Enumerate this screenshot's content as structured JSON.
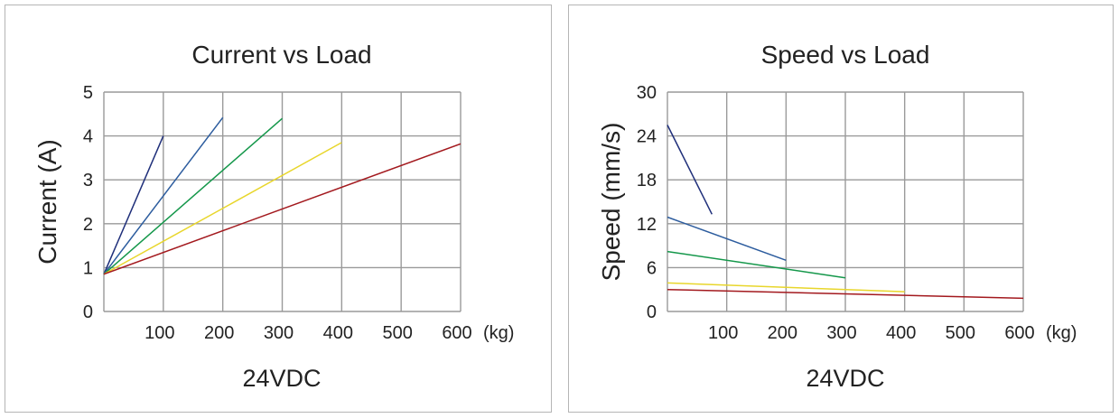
{
  "chart_data": [
    {
      "type": "line",
      "title": "Current vs Load",
      "subtitle": "24VDC",
      "xlabel": "",
      "x_unit": "(kg)",
      "ylabel": "Current (A)",
      "xlim": [
        0,
        600
      ],
      "ylim": [
        0,
        5
      ],
      "x_ticks": [
        100,
        200,
        300,
        400,
        500,
        600
      ],
      "y_ticks": [
        0,
        1,
        2,
        3,
        4,
        5
      ],
      "grid": true,
      "series": [
        {
          "color": "#1f2f7a",
          "points": [
            [
              0,
              0.85
            ],
            [
              100,
              4.0
            ]
          ]
        },
        {
          "color": "#2c5c9e",
          "points": [
            [
              0,
              0.85
            ],
            [
              200,
              4.42
            ]
          ]
        },
        {
          "color": "#14974a",
          "points": [
            [
              0,
              0.85
            ],
            [
              300,
              4.4
            ]
          ]
        },
        {
          "color": "#e8d62b",
          "points": [
            [
              0,
              0.85
            ],
            [
              400,
              3.85
            ]
          ]
        },
        {
          "color": "#a3191e",
          "points": [
            [
              0,
              0.85
            ],
            [
              600,
              3.82
            ]
          ]
        }
      ]
    },
    {
      "type": "line",
      "title": "Speed vs Load",
      "subtitle": "24VDC",
      "xlabel": "",
      "x_unit": "(kg)",
      "ylabel": "Speed (mm/s)",
      "xlim": [
        0,
        600
      ],
      "ylim": [
        0,
        30
      ],
      "x_ticks": [
        100,
        200,
        300,
        400,
        500,
        600
      ],
      "y_ticks": [
        0,
        6,
        12,
        18,
        24,
        30
      ],
      "grid": true,
      "series": [
        {
          "color": "#1f2f7a",
          "points": [
            [
              0,
              25.5
            ],
            [
              75,
              13.3
            ]
          ]
        },
        {
          "color": "#2c5c9e",
          "points": [
            [
              0,
              12.9
            ],
            [
              200,
              7.0
            ]
          ]
        },
        {
          "color": "#14974a",
          "points": [
            [
              0,
              8.2
            ],
            [
              300,
              4.6
            ]
          ]
        },
        {
          "color": "#e8d62b",
          "points": [
            [
              0,
              3.9
            ],
            [
              400,
              2.7
            ]
          ]
        },
        {
          "color": "#a3191e",
          "points": [
            [
              0,
              3.0
            ],
            [
              600,
              1.8
            ]
          ]
        }
      ]
    }
  ]
}
